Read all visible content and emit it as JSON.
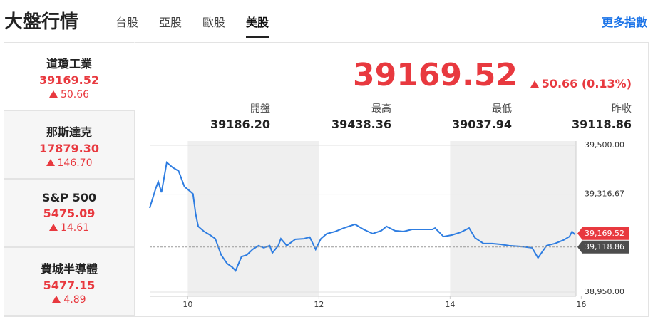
{
  "header": {
    "title": "大盤行情",
    "tabs": [
      "台股",
      "亞股",
      "歐股",
      "美股"
    ],
    "active_tab": 3,
    "more_link": "更多指數"
  },
  "indices": [
    {
      "name": "道瓊工業",
      "price": "39169.52",
      "change": "50.66"
    },
    {
      "name": "那斯達克",
      "price": "17879.30",
      "change": "146.70"
    },
    {
      "name": "S&P 500",
      "price": "5475.09",
      "change": "14.61"
    },
    {
      "name": "費城半導體",
      "price": "5477.15",
      "change": "4.89"
    }
  ],
  "active_index": 0,
  "quote": {
    "price": "39169.52",
    "change": "50.66 (0.13%)",
    "stats": [
      {
        "label": "開盤",
        "value": "39186.20"
      },
      {
        "label": "最高",
        "value": "39438.36"
      },
      {
        "label": "最低",
        "value": "39037.94"
      },
      {
        "label": "昨收",
        "value": "39118.86"
      }
    ]
  },
  "chart_data": {
    "type": "line",
    "x": [
      9.42,
      9.51,
      9.55,
      9.6,
      9.68,
      9.77,
      9.86,
      9.95,
      10.03,
      10.08,
      10.12,
      10.16,
      10.25,
      10.34,
      10.42,
      10.51,
      10.6,
      10.68,
      10.73,
      10.82,
      10.9,
      10.99,
      11.08,
      11.16,
      11.25,
      11.29,
      11.38,
      11.42,
      11.51,
      11.64,
      11.77,
      11.86,
      11.95,
      12.03,
      12.12,
      12.25,
      12.38,
      12.55,
      12.68,
      12.82,
      12.95,
      13.03,
      13.16,
      13.29,
      13.42,
      13.55,
      13.73,
      13.77,
      13.9,
      14.03,
      14.16,
      14.29,
      14.38,
      14.51,
      14.64,
      14.77,
      14.9,
      15.08,
      15.25,
      15.34,
      15.47,
      15.6,
      15.73,
      15.82,
      15.86,
      15.9
    ],
    "series": [
      {
        "color": "#2e7de1",
        "values": [
          39265,
          39337,
          39364,
          39324,
          39436,
          39417,
          39404,
          39345,
          39329,
          39318,
          39244,
          39196,
          39177,
          39164,
          39150,
          39089,
          39057,
          39043,
          39030,
          39083,
          39089,
          39110,
          39124,
          39116,
          39124,
          39097,
          39124,
          39150,
          39124,
          39148,
          39150,
          39156,
          39110,
          39150,
          39169,
          39177,
          39190,
          39204,
          39185,
          39169,
          39180,
          39196,
          39180,
          39177,
          39185,
          39185,
          39185,
          39190,
          39158,
          39164,
          39174,
          39190,
          39153,
          39132,
          39132,
          39129,
          39124,
          39121,
          39116,
          39078,
          39124,
          39132,
          39145,
          39158,
          39177,
          39166
        ]
      }
    ],
    "xlim": [
      9.42,
      15.92
    ],
    "xticks": [
      10,
      12,
      14,
      16
    ],
    "ylim": [
      38934,
      39516
    ],
    "yticks": [
      {
        "value": 38950,
        "label": "38,950.00"
      },
      {
        "value": 39316.67,
        "label": "39,316.67"
      },
      {
        "value": 39500,
        "label": "39,500.00"
      }
    ],
    "markers": [
      {
        "value": 39169.52,
        "label": "39,169.52",
        "color": "#e8393f",
        "style": "solid"
      },
      {
        "value": 39118.86,
        "label": "39,118.86",
        "color": "#4d4d4d",
        "style": "dashed"
      }
    ]
  }
}
